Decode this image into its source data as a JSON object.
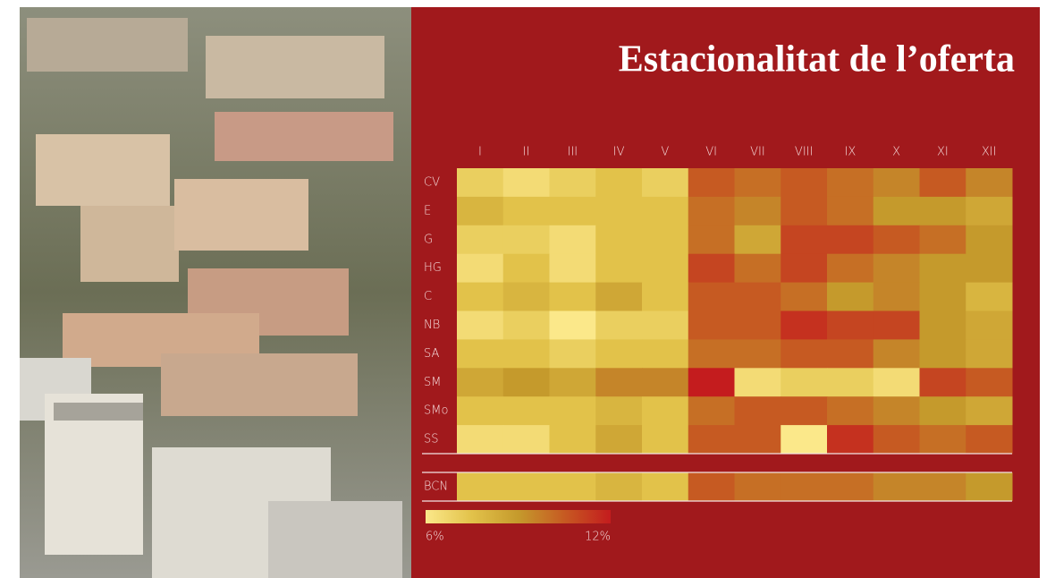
{
  "chart_data": {
    "type": "heatmap",
    "title": "Estacionalitat de l’oferta",
    "columns": [
      "I",
      "II",
      "III",
      "IV",
      "V",
      "VI",
      "VII",
      "VIII",
      "IX",
      "X",
      "XI",
      "XII"
    ],
    "rows": [
      "CV",
      "E",
      "G",
      "HG",
      "C",
      "NB",
      "SA",
      "SM",
      "SMo",
      "SS"
    ],
    "values": [
      [
        7,
        6.5,
        7,
        7.5,
        7,
        10.5,
        10,
        10.5,
        10,
        9.5,
        10.5,
        9.5
      ],
      [
        8,
        7.5,
        7.5,
        7.5,
        7.5,
        10,
        9.5,
        10.5,
        10,
        9,
        9,
        8.5
      ],
      [
        7,
        7,
        6.5,
        7.5,
        7.5,
        10,
        8.5,
        11,
        11,
        10.5,
        10,
        9
      ],
      [
        6.5,
        7.5,
        6.5,
        7.5,
        7.5,
        11,
        10,
        11,
        10,
        9.5,
        9,
        9
      ],
      [
        7.5,
        8,
        7.5,
        8.5,
        7.5,
        10.5,
        10.5,
        10,
        9,
        9.5,
        9,
        8
      ],
      [
        6.5,
        7,
        6,
        7,
        7,
        10.5,
        10.5,
        11.5,
        11,
        11,
        9,
        8.5
      ],
      [
        7.5,
        7.5,
        7,
        7.5,
        7.5,
        10,
        10,
        10.5,
        10.5,
        9.5,
        9,
        8.5
      ],
      [
        8.5,
        9,
        8.5,
        9.5,
        9.5,
        12,
        6.5,
        7,
        7,
        6.5,
        11,
        10.5
      ],
      [
        7.5,
        7.5,
        7.5,
        8,
        7.5,
        10,
        10.5,
        10.5,
        10,
        9.5,
        9,
        8.5
      ],
      [
        6.5,
        6.5,
        7.5,
        8.5,
        7.5,
        10.5,
        10.5,
        6,
        11.5,
        10.5,
        10,
        10.5
      ]
    ],
    "total": {
      "name": "BCN",
      "values": [
        7.5,
        7.5,
        7.5,
        8,
        7.5,
        10.5,
        10,
        10,
        10,
        9.5,
        9.5,
        9
      ]
    },
    "colors": [
      "#fbe88a",
      "#e2c24a",
      "#c59a2c",
      "#c65a22",
      "#c41c1e"
    ],
    "zlim": [
      6,
      12
    ],
    "zticks": [
      {
        "value": 6,
        "label": "6%"
      },
      {
        "value": 12,
        "label": "12%"
      }
    ]
  }
}
